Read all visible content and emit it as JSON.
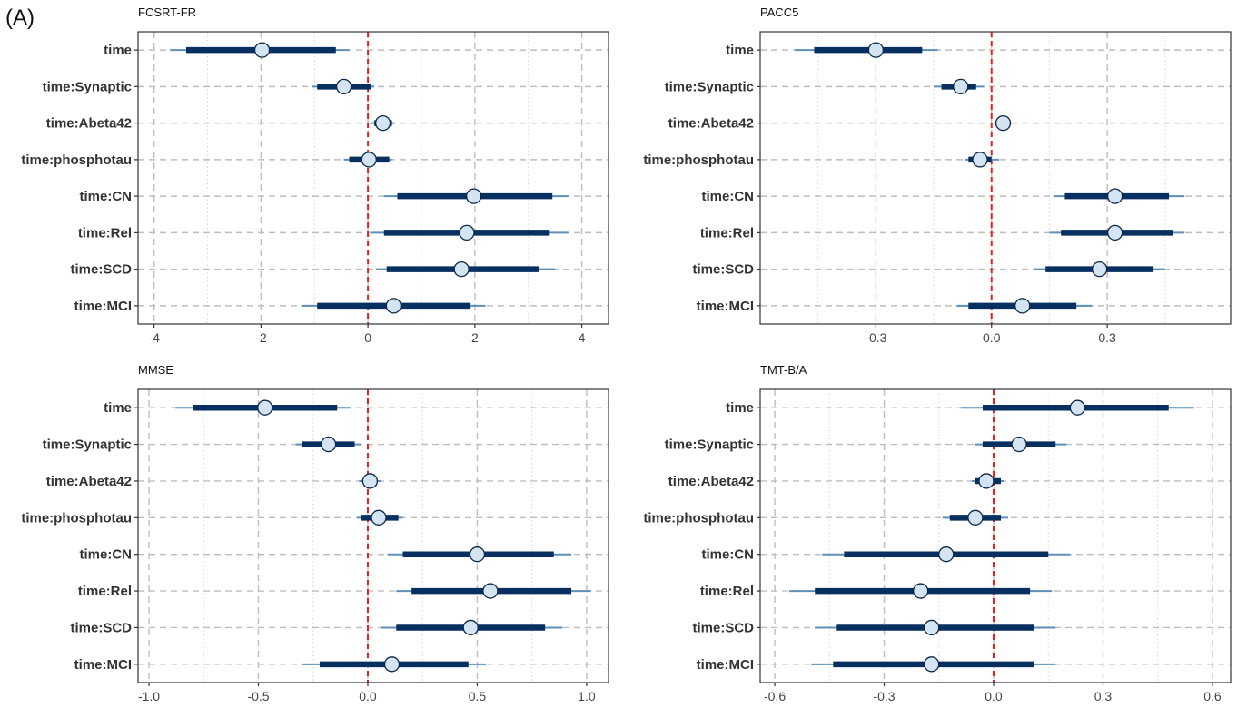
{
  "figure_label": "(A)",
  "colors": {
    "ci_outer": "#5d8fb8",
    "ci_inner": "#072f5f",
    "point_fill": "#d4e4f2",
    "point_stroke": "#0b2744",
    "zero_line": "#e8201e",
    "grid_major": "#bdbdbd",
    "grid_minor": "#d6d6d6",
    "panel_border": "#333333"
  },
  "chart_data": [
    {
      "type": "interval",
      "title": "FCSRT-FR",
      "xlim": [
        -4.3,
        4.5
      ],
      "xticks": [
        -4,
        -2,
        0,
        2,
        4
      ],
      "xtick_labels": [
        "-4",
        "-2",
        "0",
        "2",
        "4"
      ],
      "minor_xticks": [
        -3,
        -1,
        1,
        3
      ],
      "reference_line": 0,
      "terms": [
        {
          "label": "time",
          "estimate": -1.98,
          "inner": [
            -3.4,
            -0.6
          ],
          "outer": [
            -3.7,
            -0.35
          ]
        },
        {
          "label": "time:Synaptic",
          "estimate": -0.45,
          "inner": [
            -0.95,
            0.05
          ],
          "outer": [
            -1.05,
            0.12
          ]
        },
        {
          "label": "time:Abeta42",
          "estimate": 0.28,
          "inner": [
            0.12,
            0.45
          ],
          "outer": [
            0.05,
            0.5
          ]
        },
        {
          "label": "time:phosphotau",
          "estimate": 0.02,
          "inner": [
            -0.35,
            0.4
          ],
          "outer": [
            -0.45,
            0.45
          ]
        },
        {
          "label": "time:CN",
          "estimate": 1.98,
          "inner": [
            0.55,
            3.45
          ],
          "outer": [
            0.3,
            3.75
          ]
        },
        {
          "label": "time:Rel",
          "estimate": 1.85,
          "inner": [
            0.3,
            3.4
          ],
          "outer": [
            0.05,
            3.75
          ]
        },
        {
          "label": "time:SCD",
          "estimate": 1.75,
          "inner": [
            0.35,
            3.2
          ],
          "outer": [
            0.15,
            3.5
          ]
        },
        {
          "label": "time:MCI",
          "estimate": 0.48,
          "inner": [
            -0.95,
            1.92
          ],
          "outer": [
            -1.25,
            2.2
          ]
        }
      ]
    },
    {
      "type": "interval",
      "title": "PACC5",
      "xlim": [
        -0.6,
        0.62
      ],
      "xticks": [
        -0.3,
        0.0,
        0.3
      ],
      "xtick_labels": [
        "-0.3",
        "0.0",
        "0.3"
      ],
      "minor_xticks": [
        -0.45,
        -0.15,
        0.15,
        0.45
      ],
      "reference_line": 0,
      "terms": [
        {
          "label": "time",
          "estimate": -0.3,
          "inner": [
            -0.46,
            -0.18
          ],
          "outer": [
            -0.51,
            -0.14
          ]
        },
        {
          "label": "time:Synaptic",
          "estimate": -0.08,
          "inner": [
            -0.13,
            -0.04
          ],
          "outer": [
            -0.15,
            -0.02
          ]
        },
        {
          "label": "time:Abeta42",
          "estimate": 0.03,
          "inner": [
            0.02,
            0.04
          ],
          "outer": [
            0.01,
            0.05
          ]
        },
        {
          "label": "time:phosphotau",
          "estimate": -0.03,
          "inner": [
            -0.06,
            0.0
          ],
          "outer": [
            -0.07,
            0.02
          ]
        },
        {
          "label": "time:CN",
          "estimate": 0.32,
          "inner": [
            0.19,
            0.46
          ],
          "outer": [
            0.16,
            0.5
          ]
        },
        {
          "label": "time:Rel",
          "estimate": 0.32,
          "inner": [
            0.18,
            0.47
          ],
          "outer": [
            0.15,
            0.5
          ]
        },
        {
          "label": "time:SCD",
          "estimate": 0.28,
          "inner": [
            0.14,
            0.42
          ],
          "outer": [
            0.11,
            0.45
          ]
        },
        {
          "label": "time:MCI",
          "estimate": 0.08,
          "inner": [
            -0.06,
            0.22
          ],
          "outer": [
            -0.09,
            0.26
          ]
        }
      ]
    },
    {
      "type": "interval",
      "title": "MMSE",
      "xlim": [
        -1.05,
        1.1
      ],
      "xticks": [
        -1.0,
        -0.5,
        0.0,
        0.5,
        1.0
      ],
      "xtick_labels": [
        "-1.0",
        "-0.5",
        "0.0",
        "0.5",
        "1.0"
      ],
      "minor_xticks": [
        -0.75,
        -0.25,
        0.25,
        0.75
      ],
      "reference_line": 0,
      "terms": [
        {
          "label": "time",
          "estimate": -0.47,
          "inner": [
            -0.8,
            -0.14
          ],
          "outer": [
            -0.88,
            -0.08
          ]
        },
        {
          "label": "time:Synaptic",
          "estimate": -0.18,
          "inner": [
            -0.3,
            -0.06
          ],
          "outer": [
            -0.33,
            -0.03
          ]
        },
        {
          "label": "time:Abeta42",
          "estimate": 0.01,
          "inner": [
            -0.02,
            0.04
          ],
          "outer": [
            -0.04,
            0.06
          ]
        },
        {
          "label": "time:phosphotau",
          "estimate": 0.05,
          "inner": [
            -0.03,
            0.14
          ],
          "outer": [
            -0.05,
            0.16
          ]
        },
        {
          "label": "time:CN",
          "estimate": 0.5,
          "inner": [
            0.16,
            0.85
          ],
          "outer": [
            0.09,
            0.93
          ]
        },
        {
          "label": "time:Rel",
          "estimate": 0.56,
          "inner": [
            0.2,
            0.93
          ],
          "outer": [
            0.13,
            1.02
          ]
        },
        {
          "label": "time:SCD",
          "estimate": 0.47,
          "inner": [
            0.13,
            0.81
          ],
          "outer": [
            0.06,
            0.89
          ]
        },
        {
          "label": "time:MCI",
          "estimate": 0.11,
          "inner": [
            -0.22,
            0.46
          ],
          "outer": [
            -0.3,
            0.54
          ]
        }
      ]
    },
    {
      "type": "interval",
      "title": "TMT-B/A",
      "xlim": [
        -0.64,
        0.65
      ],
      "xticks": [
        -0.6,
        -0.3,
        0.0,
        0.3,
        0.6
      ],
      "xtick_labels": [
        "-0.6",
        "-0.3",
        "0.0",
        "0.3",
        "0.6"
      ],
      "minor_xticks": [
        -0.45,
        -0.15,
        0.15,
        0.45
      ],
      "reference_line": 0,
      "terms": [
        {
          "label": "time",
          "estimate": 0.23,
          "inner": [
            -0.03,
            0.48
          ],
          "outer": [
            -0.09,
            0.55
          ]
        },
        {
          "label": "time:Synaptic",
          "estimate": 0.07,
          "inner": [
            -0.03,
            0.17
          ],
          "outer": [
            -0.05,
            0.2
          ]
        },
        {
          "label": "time:Abeta42",
          "estimate": -0.02,
          "inner": [
            -0.05,
            0.02
          ],
          "outer": [
            -0.06,
            0.03
          ]
        },
        {
          "label": "time:phosphotau",
          "estimate": -0.05,
          "inner": [
            -0.12,
            0.02
          ],
          "outer": [
            -0.14,
            0.04
          ]
        },
        {
          "label": "time:CN",
          "estimate": -0.13,
          "inner": [
            -0.41,
            0.15
          ],
          "outer": [
            -0.47,
            0.21
          ]
        },
        {
          "label": "time:Rel",
          "estimate": -0.2,
          "inner": [
            -0.49,
            0.1
          ],
          "outer": [
            -0.56,
            0.16
          ]
        },
        {
          "label": "time:SCD",
          "estimate": -0.17,
          "inner": [
            -0.43,
            0.11
          ],
          "outer": [
            -0.49,
            0.17
          ]
        },
        {
          "label": "time:MCI",
          "estimate": -0.17,
          "inner": [
            -0.44,
            0.11
          ],
          "outer": [
            -0.5,
            0.17
          ]
        }
      ]
    }
  ]
}
